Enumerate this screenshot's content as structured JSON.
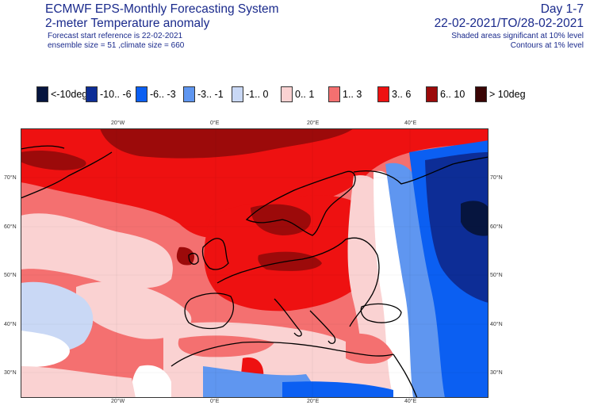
{
  "header": {
    "title": "ECMWF EPS-Monthly Forecasting System",
    "subtitle": "2-meter Temperature anomaly",
    "start_ref": "Forecast start reference is 22-02-2021",
    "ensemble": "ensemble size = 51  ,climate size = 660",
    "period": "Day 1-7",
    "dates": "22-02-2021/TO/28-02-2021",
    "sig_shaded": "Shaded areas significant at 10% level",
    "sig_contours": "Contours at 1% level"
  },
  "legend": [
    {
      "label": "<-10deg",
      "color": "#06153f"
    },
    {
      "label": "-10.. -6",
      "color": "#0d2d96"
    },
    {
      "label": "-6.. -3",
      "color": "#0b5ff2"
    },
    {
      "label": "-3.. -1",
      "color": "#5f96f0"
    },
    {
      "label": "-1..  0",
      "color": "#c9d8f5"
    },
    {
      "label": "0..  1",
      "color": "#fad2d2"
    },
    {
      "label": "1..  3",
      "color": "#f47070"
    },
    {
      "label": "3..  6",
      "color": "#ee1111"
    },
    {
      "label": "6.. 10",
      "color": "#9c0a0a"
    },
    {
      "label": "> 10deg",
      "color": "#3a0505"
    }
  ],
  "axes": {
    "lon_ticks": [
      "20°W",
      "0°E",
      "20°E",
      "40°E"
    ],
    "lat_ticks": [
      "70°N",
      "60°N",
      "50°N",
      "40°N",
      "30°N"
    ]
  }
}
